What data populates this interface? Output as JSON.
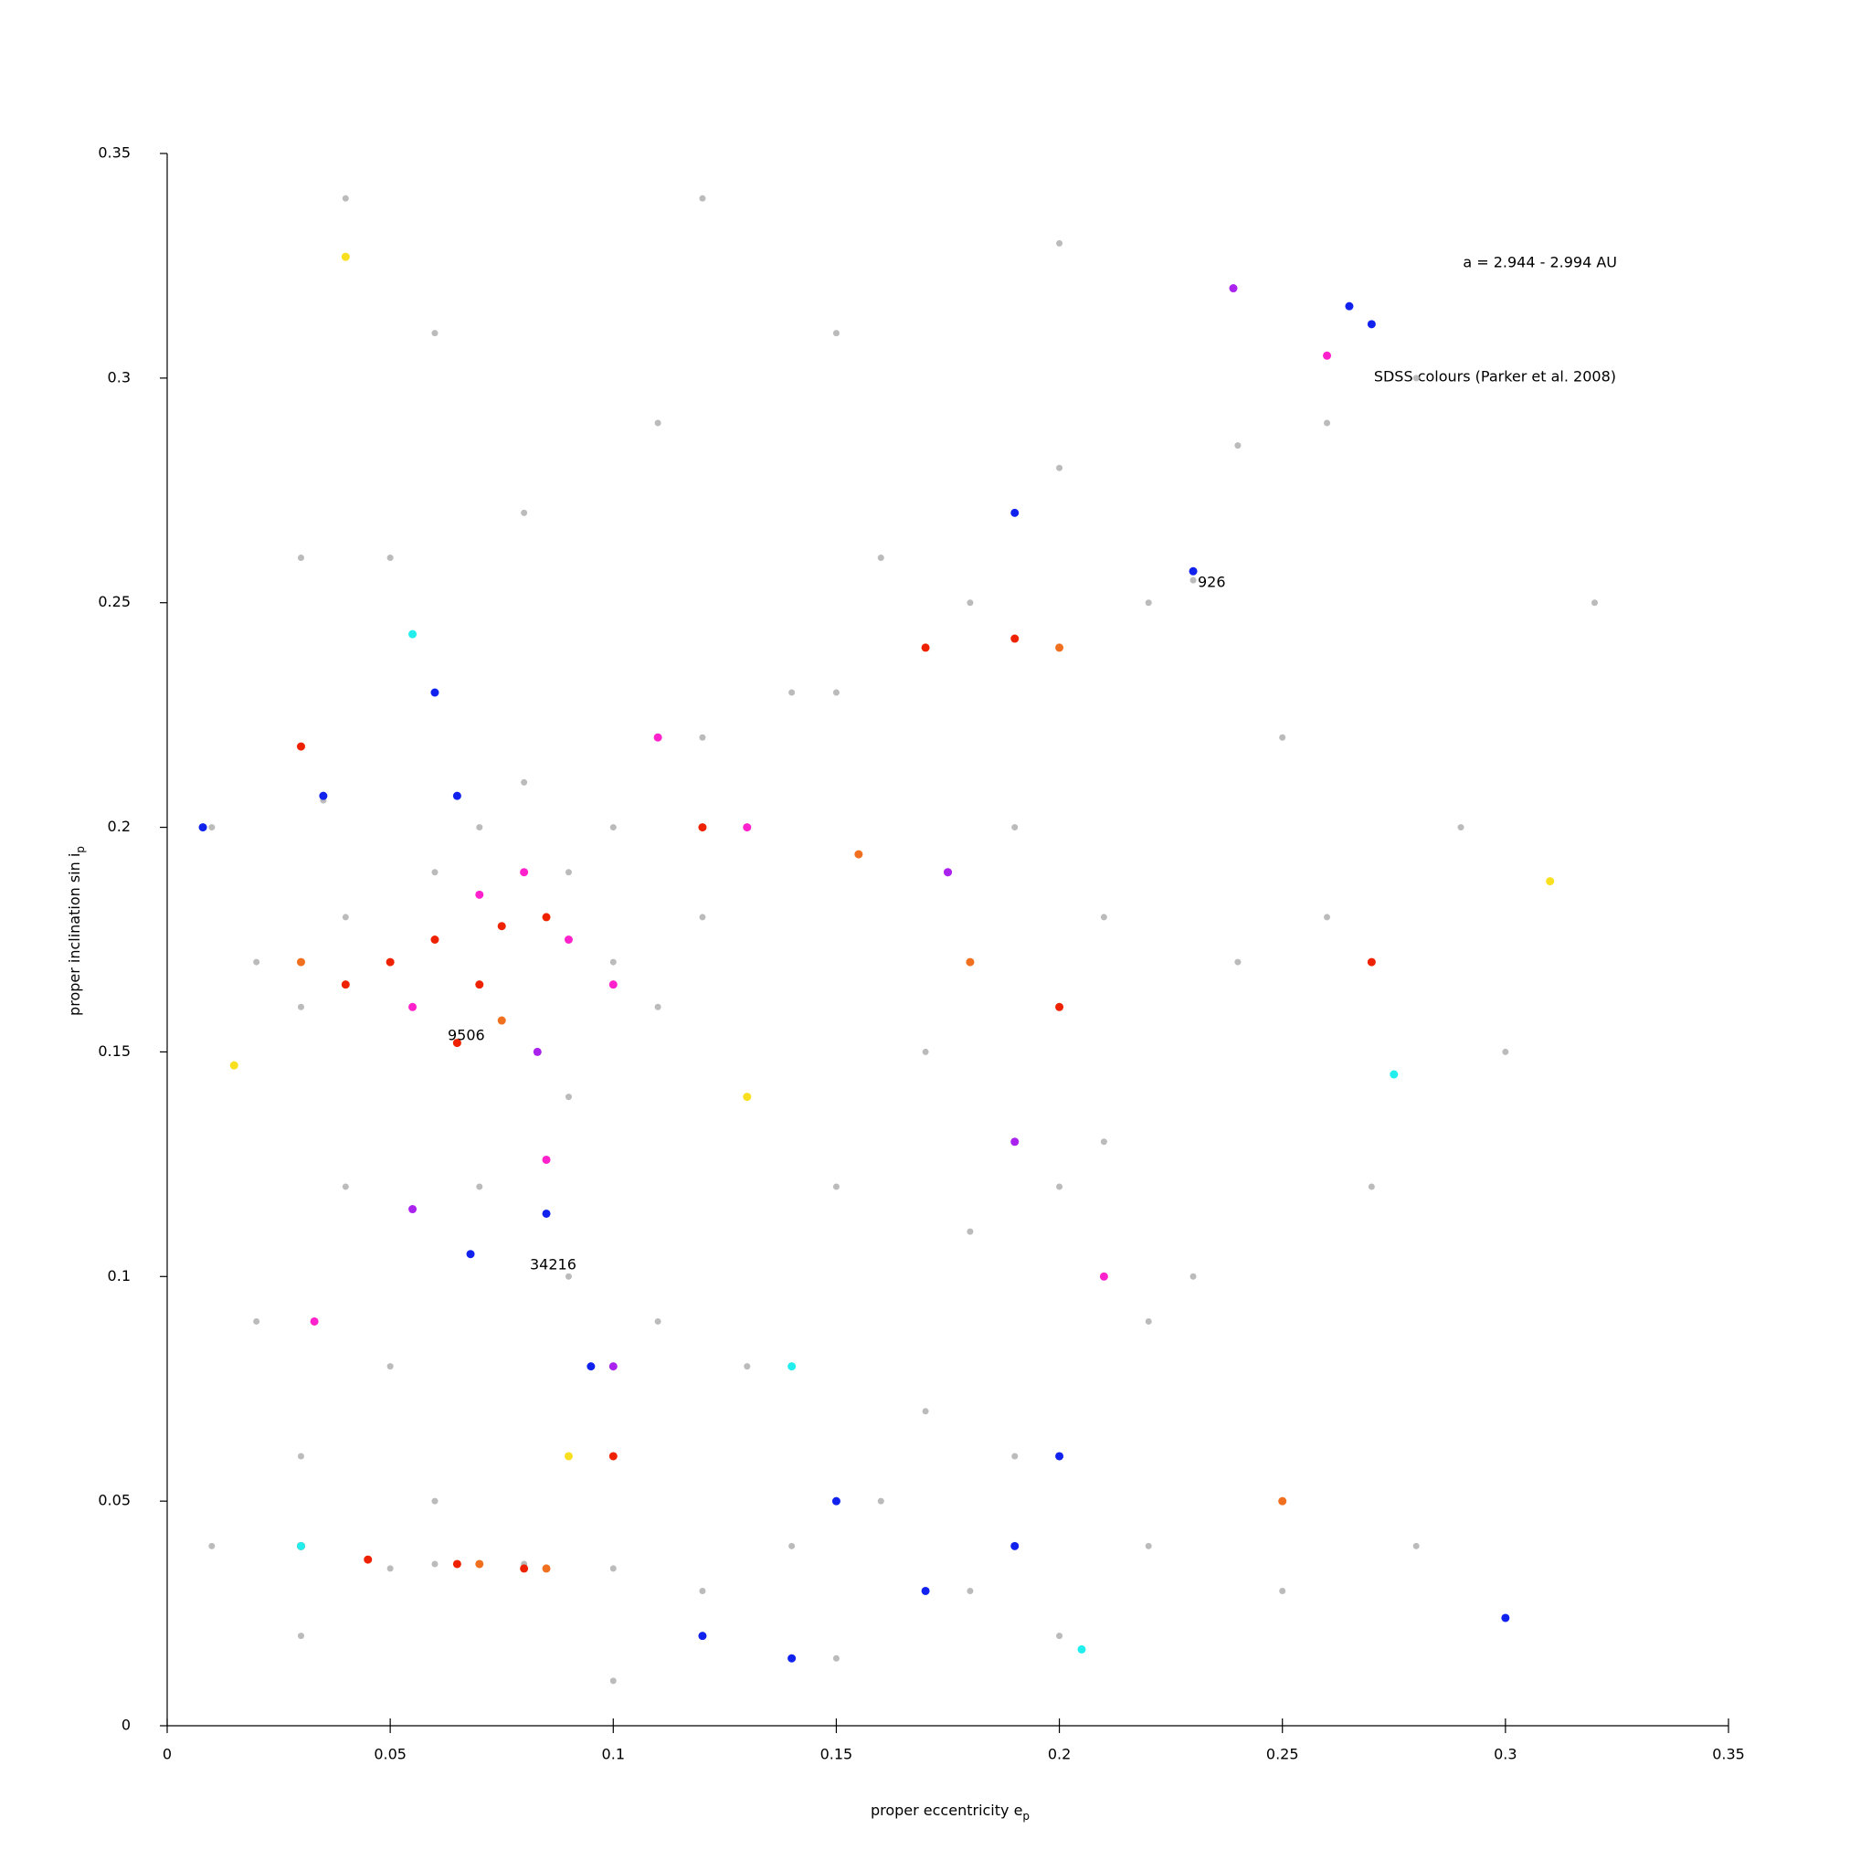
{
  "chart_data": {
    "type": "scatter",
    "xlabel": "proper eccentricity e",
    "xlabel_sub": "p",
    "ylabel": "proper inclination sin i",
    "ylabel_sub": "p",
    "annotations": [
      "a = 2.944 - 2.994 AU",
      "SDSS colours (Parker et al. 2008)",
      "926",
      "9506",
      "34216"
    ],
    "xlim": [
      0,
      0.35
    ],
    "ylim": [
      0,
      0.35
    ],
    "xticks": [
      0,
      0.05,
      0.1,
      0.15,
      0.2,
      0.25,
      0.3,
      0.35
    ],
    "yticks": [
      0,
      0.05,
      0.1,
      0.15,
      0.2,
      0.25,
      0.3,
      0.35
    ],
    "series": [
      {
        "color": "#bbbbbb",
        "x": [
          0.01,
          0.02,
          0.03,
          0.04,
          0.05,
          0.06,
          0.07,
          0.08,
          0.09,
          0.1,
          0.11,
          0.12,
          0.1,
          0.12,
          0.14,
          0.15,
          0.03,
          0.05,
          0.08,
          0.11,
          0.06,
          0.15,
          0.2,
          0.24,
          0.26,
          0.28,
          0.23,
          0.22,
          0.18,
          0.16,
          0.19,
          0.21,
          0.17,
          0.2,
          0.24,
          0.26,
          0.13,
          0.15,
          0.18,
          0.2,
          0.22,
          0.07,
          0.09,
          0.11,
          0.13,
          0.05,
          0.03,
          0.06,
          0.08,
          0.06,
          0.05,
          0.1,
          0.12,
          0.14,
          0.16,
          0.18,
          0.2,
          0.22,
          0.25,
          0.28,
          0.17,
          0.19,
          0.23,
          0.27,
          0.3,
          0.25,
          0.29,
          0.32,
          0.12,
          0.04,
          0.2,
          0.09,
          0.04,
          0.02,
          0.01,
          0.03,
          0.1,
          0.15,
          0.21,
          0.035
        ],
        "values": [
          0.2,
          0.17,
          0.16,
          0.18,
          0.17,
          0.19,
          0.2,
          0.21,
          0.19,
          0.17,
          0.16,
          0.18,
          0.2,
          0.22,
          0.23,
          0.23,
          0.26,
          0.26,
          0.27,
          0.29,
          0.31,
          0.31,
          0.28,
          0.285,
          0.29,
          0.3,
          0.255,
          0.25,
          0.25,
          0.26,
          0.2,
          0.18,
          0.15,
          0.16,
          0.17,
          0.18,
          0.14,
          0.12,
          0.11,
          0.12,
          0.09,
          0.12,
          0.1,
          0.09,
          0.08,
          0.08,
          0.06,
          0.05,
          0.036,
          0.036,
          0.035,
          0.035,
          0.03,
          0.04,
          0.05,
          0.03,
          0.02,
          0.04,
          0.03,
          0.04,
          0.07,
          0.06,
          0.1,
          0.12,
          0.15,
          0.22,
          0.2,
          0.25,
          0.34,
          0.34,
          0.33,
          0.14,
          0.12,
          0.09,
          0.04,
          0.02,
          0.01,
          0.015,
          0.13,
          0.206
        ]
      },
      {
        "color": "#ee2200",
        "x": [
          0.04,
          0.05,
          0.06,
          0.075,
          0.085,
          0.065,
          0.07,
          0.045,
          0.065,
          0.08,
          0.03,
          0.12,
          0.17,
          0.27,
          0.2,
          0.1,
          0.03,
          0.19
        ],
        "values": [
          0.165,
          0.17,
          0.175,
          0.178,
          0.18,
          0.152,
          0.165,
          0.037,
          0.036,
          0.035,
          0.04,
          0.2,
          0.24,
          0.17,
          0.16,
          0.06,
          0.218,
          0.242
        ]
      },
      {
        "color": "#ff22cc",
        "x": [
          0.08,
          0.07,
          0.09,
          0.055,
          0.1,
          0.11,
          0.13,
          0.175,
          0.21,
          0.033,
          0.085,
          0.26
        ],
        "values": [
          0.19,
          0.185,
          0.175,
          0.16,
          0.165,
          0.22,
          0.2,
          0.19,
          0.1,
          0.09,
          0.126,
          0.305
        ]
      },
      {
        "color": "#1122ee",
        "x": [
          0.065,
          0.035,
          0.008,
          0.265,
          0.27,
          0.23,
          0.06,
          0.15,
          0.17,
          0.19,
          0.14,
          0.3,
          0.2,
          0.12,
          0.085,
          0.068,
          0.19,
          0.095
        ],
        "values": [
          0.207,
          0.207,
          0.2,
          0.316,
          0.312,
          0.257,
          0.23,
          0.05,
          0.03,
          0.04,
          0.015,
          0.024,
          0.06,
          0.02,
          0.114,
          0.105,
          0.27,
          0.08
        ]
      },
      {
        "color": "#f07020",
        "x": [
          0.085,
          0.075,
          0.2,
          0.155,
          0.07,
          0.03,
          0.18,
          0.25
        ],
        "values": [
          0.035,
          0.157,
          0.24,
          0.194,
          0.036,
          0.17,
          0.17,
          0.05
        ]
      },
      {
        "color": "#22eeee",
        "x": [
          0.055,
          0.03,
          0.205,
          0.14,
          0.275
        ],
        "values": [
          0.243,
          0.04,
          0.017,
          0.08,
          0.145
        ]
      },
      {
        "color": "#f8e020",
        "x": [
          0.04,
          0.31,
          0.09,
          0.015,
          0.13
        ],
        "values": [
          0.327,
          0.188,
          0.06,
          0.147,
          0.14
        ]
      },
      {
        "color": "#aa22ee",
        "x": [
          0.239,
          0.083,
          0.175,
          0.19,
          0.1,
          0.055
        ],
        "values": [
          0.32,
          0.15,
          0.19,
          0.13,
          0.08,
          0.115
        ]
      }
    ]
  }
}
